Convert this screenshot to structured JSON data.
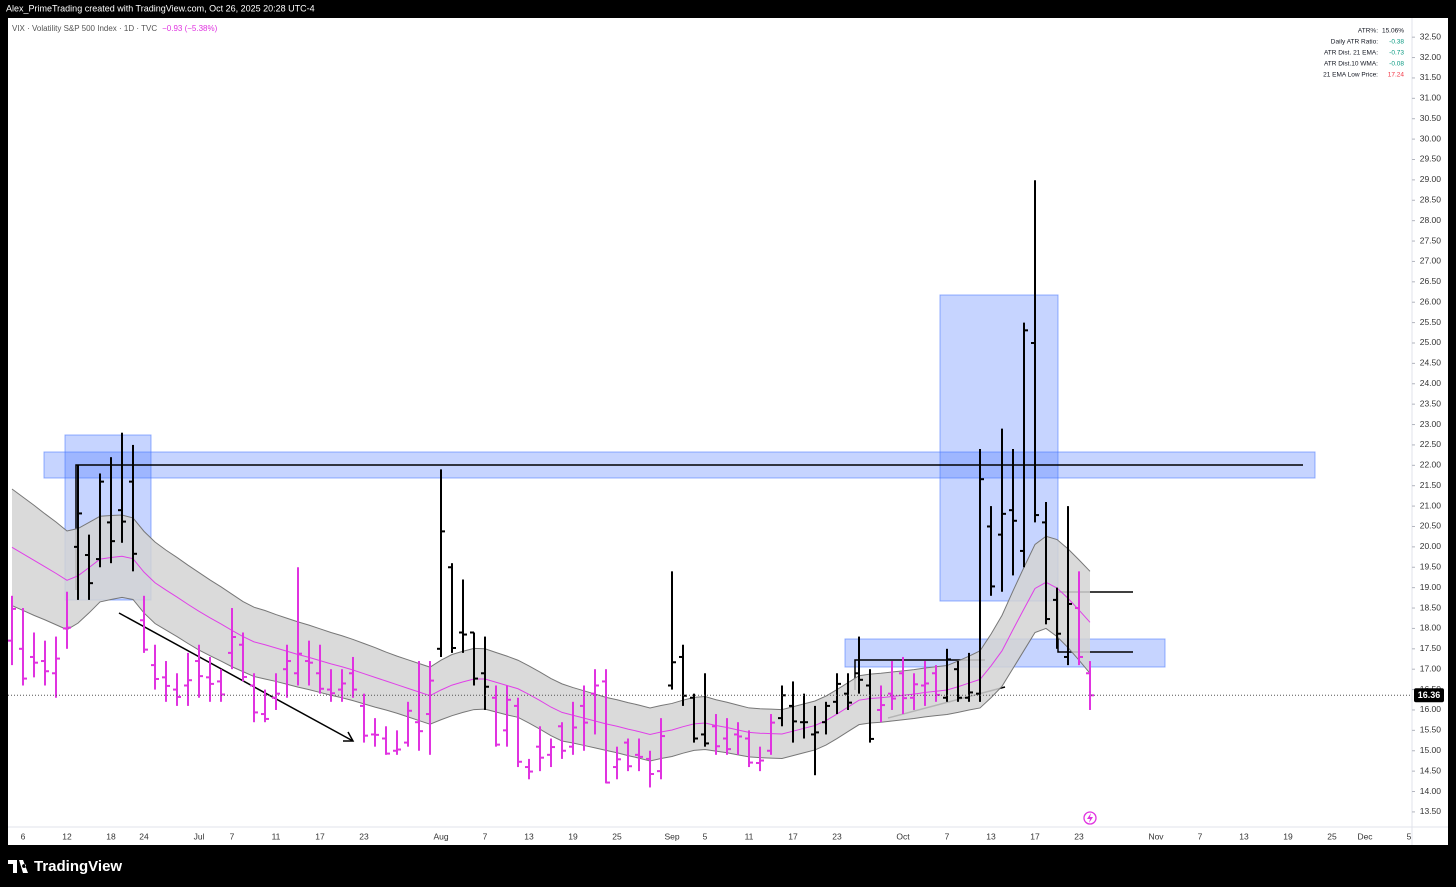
{
  "header": {
    "text": "Alex_PrimeTrading created with TradingView.com, Oct 26, 2025 20:28 UTC-4"
  },
  "footer": {
    "brand": "TradingView"
  },
  "chart_data": {
    "type": "ohlc",
    "legend_title": "VIX · Volatility S&P 500 Index · 1D · TVC",
    "legend_change": "−0.93 (−5.38%)",
    "legend_change_color": "#e033e0",
    "stats": [
      {
        "label": "ATR%:",
        "value": "15.06%",
        "color": "#131722"
      },
      {
        "label": "Daily ATR Ratio:",
        "value": "-0.38",
        "color": "#089981"
      },
      {
        "label": "ATR Dist. 21 EMA:",
        "value": "-0.73",
        "color": "#089981"
      },
      {
        "label": "ATR Dist.10 WMA:",
        "value": "-0.08",
        "color": "#089981"
      },
      {
        "label": "21 EMA Low Price:",
        "value": "17.24",
        "color": "#f23645"
      }
    ],
    "categories": [
      null,
      "6",
      null,
      null,
      null,
      "12",
      null,
      null,
      null,
      "18",
      null,
      null,
      "24",
      null,
      null,
      null,
      null,
      "Jul",
      null,
      null,
      "7",
      null,
      null,
      null,
      "11",
      null,
      null,
      null,
      "17",
      null,
      null,
      null,
      "23",
      null,
      null,
      null,
      null,
      null,
      null,
      "Aug",
      null,
      null,
      null,
      "7",
      null,
      null,
      null,
      "13",
      null,
      null,
      null,
      "19",
      null,
      null,
      null,
      "25",
      null,
      null,
      null,
      null,
      "Sep",
      null,
      null,
      "5",
      null,
      null,
      null,
      "11",
      null,
      null,
      null,
      "17",
      null,
      null,
      null,
      "23",
      null,
      null,
      null,
      null,
      null,
      "Oct",
      null,
      null,
      null,
      "7",
      null,
      null,
      null,
      "13",
      null,
      null,
      null,
      "17",
      null,
      null,
      null,
      "23",
      null,
      null,
      null,
      null,
      null,
      null,
      "Nov",
      null,
      null,
      null,
      "7",
      null,
      null,
      null,
      "13",
      null,
      null,
      null,
      "19",
      null,
      null,
      null,
      "25",
      null,
      null,
      "Dec",
      null,
      null,
      null,
      "5"
    ],
    "open": [
      17.7,
      17.5,
      17.3,
      17.2,
      16.9,
      18.0,
      20.0,
      19.8,
      19.7,
      20.6,
      20.9,
      21.6,
      18.2,
      17.1,
      16.8,
      16.5,
      16.6,
      17.2,
      16.8,
      16.7,
      17.4,
      17.6,
      16.6,
      15.9,
      16.3,
      17.0,
      16.9,
      17.2,
      16.9,
      16.5,
      16.5,
      16.9,
      16.1,
      15.4,
      15.3,
      15.0,
      15.2,
      15.7,
      15.9,
      17.5,
      19.5,
      17.9,
      17.9,
      16.9,
      16.3,
      15.5,
      16.1,
      14.6,
      15.1,
      14.9,
      15.6,
      15.1,
      16.1,
      16.4,
      16.7,
      14.6,
      15.2,
      14.9,
      14.8,
      14.5,
      16.6,
      17.3,
      16.3,
      15.4,
      15.6,
      15.3,
      15.4,
      15.3,
      14.7,
      15.0,
      15.8,
      16.1,
      15.7,
      15.4,
      15.7,
      16.2,
      16.4,
      16.9,
      16.6,
      16.0,
      16.4,
      16.9,
      16.3,
      16.6,
      16.9,
      16.3,
      17.0,
      16.3,
      16.4,
      20.5,
      20.3,
      20.9,
      19.9,
      25.0,
      20.6,
      18.7,
      17.3,
      18.5,
      16.9,
      null,
      null,
      null,
      null,
      null,
      null,
      null,
      null,
      null,
      null,
      null,
      null,
      null,
      null,
      null,
      null,
      null,
      null,
      null,
      null,
      null,
      null,
      null,
      null,
      null,
      null,
      null,
      null,
      null
    ],
    "high": [
      18.8,
      18.5,
      17.9,
      17.7,
      17.8,
      18.9,
      22.0,
      20.3,
      21.8,
      22.2,
      22.8,
      22.5,
      18.8,
      17.6,
      17.2,
      16.9,
      17.4,
      17.6,
      17.3,
      17.0,
      18.5,
      17.9,
      16.9,
      16.5,
      16.9,
      17.6,
      19.5,
      17.7,
      17.6,
      17.0,
      17.0,
      17.3,
      16.4,
      15.8,
      15.6,
      15.5,
      16.2,
      17.2,
      17.2,
      21.9,
      19.6,
      19.2,
      17.9,
      17.8,
      16.6,
      16.6,
      16.3,
      14.8,
      15.6,
      15.3,
      15.7,
      16.2,
      16.6,
      17.0,
      17.0,
      15.1,
      15.3,
      15.3,
      15.0,
      15.8,
      19.4,
      17.6,
      16.4,
      16.9,
      15.9,
      15.8,
      15.7,
      15.5,
      15.1,
      15.9,
      16.6,
      16.7,
      16.4,
      16.1,
      16.2,
      16.9,
      16.9,
      17.8,
      17.0,
      16.6,
      17.2,
      17.3,
      16.9,
      17.2,
      17.1,
      17.5,
      17.2,
      17.4,
      22.4,
      21.0,
      22.9,
      22.4,
      25.5,
      28.99,
      21.1,
      19.0,
      21.0,
      19.4,
      17.2,
      null,
      null,
      null,
      null,
      null,
      null,
      null,
      null,
      null,
      null,
      null,
      null,
      null,
      null,
      null,
      null,
      null,
      null,
      null,
      null,
      null,
      null,
      null,
      null,
      null,
      null,
      null,
      null,
      null
    ],
    "low": [
      17.1,
      16.6,
      16.8,
      16.6,
      16.3,
      17.5,
      18.7,
      18.7,
      19.5,
      19.6,
      20.1,
      19.4,
      17.4,
      16.5,
      16.2,
      16.1,
      16.1,
      16.3,
      16.2,
      16.2,
      17.0,
      16.7,
      15.7,
      15.7,
      16.0,
      16.3,
      16.6,
      16.6,
      16.4,
      16.2,
      16.2,
      16.3,
      15.2,
      15.1,
      14.9,
      14.9,
      15.1,
      15.0,
      14.9,
      17.3,
      17.4,
      17.4,
      16.6,
      16.0,
      15.1,
      15.1,
      14.6,
      14.3,
      14.5,
      14.6,
      14.8,
      14.9,
      15.0,
      15.4,
      14.2,
      14.3,
      14.5,
      14.5,
      14.1,
      14.3,
      16.5,
      16.1,
      15.2,
      15.1,
      14.9,
      14.9,
      14.9,
      14.6,
      14.5,
      14.9,
      15.6,
      15.2,
      15.3,
      14.4,
      15.4,
      15.9,
      16.0,
      16.4,
      15.2,
      15.7,
      16.0,
      15.9,
      16.0,
      16.1,
      16.2,
      16.2,
      16.2,
      16.2,
      16.2,
      18.8,
      18.9,
      19.3,
      19.5,
      20.6,
      18.1,
      17.5,
      17.1,
      17.1,
      16.0,
      null,
      null,
      null,
      null,
      null,
      null,
      null,
      null,
      null,
      null,
      null,
      null,
      null,
      null,
      null,
      null,
      null,
      null,
      null,
      null,
      null,
      null,
      null,
      null,
      null,
      null,
      null,
      null,
      null
    ],
    "close": [
      18.48,
      16.77,
      17.16,
      16.95,
      17.26,
      18.02,
      20.82,
      19.11,
      21.6,
      20.14,
      20.62,
      19.83,
      17.48,
      16.76,
      16.59,
      16.32,
      16.73,
      16.83,
      16.64,
      16.38,
      17.79,
      16.81,
      15.94,
      15.78,
      16.4,
      17.2,
      17.38,
      17.16,
      16.52,
      16.41,
      16.65,
      16.5,
      15.37,
      15.39,
      14.93,
      15.03,
      15.98,
      15.48,
      16.72,
      20.38,
      17.52,
      17.85,
      16.77,
      16.57,
      15.15,
      16.25,
      14.73,
      14.49,
      14.83,
      15.09,
      15.0,
      15.57,
      15.69,
      16.6,
      14.22,
      14.79,
      14.62,
      14.85,
      14.43,
      15.36,
      17.17,
      16.35,
      15.3,
      15.18,
      15.11,
      15.04,
      15.35,
      14.71,
      14.76,
      15.69,
      16.36,
      15.72,
      15.7,
      15.45,
      16.1,
      16.64,
      16.18,
      16.74,
      15.29,
      16.12,
      16.28,
      16.29,
      16.63,
      16.65,
      16.37,
      17.24,
      16.3,
      16.43,
      21.66,
      19.03,
      20.81,
      20.64,
      25.31,
      20.78,
      18.23,
      17.87,
      18.6,
      17.3,
      16.36,
      null,
      null,
      null,
      null,
      null,
      null,
      null,
      null,
      null,
      null,
      null,
      null,
      null,
      null,
      null,
      null,
      null,
      null,
      null,
      null,
      null,
      null,
      null,
      null,
      null,
      null,
      null,
      null,
      null
    ],
    "bar_colors": [
      "#e033e0",
      "#e033e0",
      "#e033e0",
      "#e033e0",
      "#e033e0",
      "#e033e0",
      "#000000",
      "#000000",
      "#000000",
      "#000000",
      "#000000",
      "#000000",
      "#e033e0",
      "#e033e0",
      "#e033e0",
      "#e033e0",
      "#e033e0",
      "#e033e0",
      "#e033e0",
      "#e033e0",
      "#e033e0",
      "#e033e0",
      "#e033e0",
      "#e033e0",
      "#e033e0",
      "#e033e0",
      "#e033e0",
      "#e033e0",
      "#e033e0",
      "#e033e0",
      "#e033e0",
      "#e033e0",
      "#e033e0",
      "#e033e0",
      "#e033e0",
      "#e033e0",
      "#e033e0",
      "#e033e0",
      "#e033e0",
      "#000000",
      "#000000",
      "#000000",
      "#000000",
      "#000000",
      "#e033e0",
      "#e033e0",
      "#e033e0",
      "#e033e0",
      "#e033e0",
      "#e033e0",
      "#e033e0",
      "#e033e0",
      "#e033e0",
      "#e033e0",
      "#e033e0",
      "#e033e0",
      "#e033e0",
      "#e033e0",
      "#e033e0",
      "#e033e0",
      "#000000",
      "#000000",
      "#000000",
      "#000000",
      "#e033e0",
      "#e033e0",
      "#e033e0",
      "#e033e0",
      "#e033e0",
      "#e033e0",
      "#000000",
      "#000000",
      "#000000",
      "#000000",
      "#000000",
      "#000000",
      "#000000",
      "#000000",
      "#000000",
      "#e033e0",
      "#e033e0",
      "#e033e0",
      "#e033e0",
      "#e033e0",
      "#e033e0",
      "#000000",
      "#000000",
      "#000000",
      "#000000",
      "#000000",
      "#000000",
      "#000000",
      "#000000",
      "#000000",
      "#000000",
      "#000000",
      "#000000",
      "#e033e0",
      "#e033e0",
      null,
      null,
      null,
      null,
      null,
      null,
      null,
      null,
      null,
      null,
      null,
      null,
      null,
      null,
      null,
      null,
      null,
      null,
      null,
      null,
      null,
      null,
      null,
      null,
      null,
      null,
      null,
      null,
      null
    ],
    "ema": [
      19.99,
      19.83,
      19.67,
      19.51,
      19.35,
      19.18,
      19.29,
      19.49,
      19.7,
      19.74,
      19.77,
      19.71,
      19.38,
      19.12,
      18.94,
      18.77,
      18.59,
      18.42,
      18.26,
      18.11,
      17.95,
      17.8,
      17.67,
      17.6,
      17.52,
      17.44,
      17.36,
      17.29,
      17.21,
      17.13,
      17.06,
      16.98,
      16.89,
      16.8,
      16.71,
      16.62,
      16.53,
      16.44,
      16.35,
      16.49,
      16.61,
      16.69,
      16.76,
      16.76,
      16.68,
      16.6,
      16.52,
      16.38,
      16.23,
      16.07,
      15.94,
      15.87,
      15.8,
      15.73,
      15.66,
      15.6,
      15.53,
      15.47,
      15.4,
      15.46,
      15.51,
      15.59,
      15.66,
      15.68,
      15.62,
      15.57,
      15.51,
      15.45,
      15.43,
      15.42,
      15.41,
      15.48,
      15.55,
      15.62,
      15.74,
      15.9,
      16.07,
      16.24,
      16.28,
      16.3,
      16.33,
      16.36,
      16.39,
      16.43,
      16.46,
      16.49,
      16.57,
      16.66,
      16.75,
      17.08,
      17.45,
      17.97,
      18.48,
      18.98,
      19.13,
      18.99,
      18.74,
      18.45,
      18.15,
      null,
      null,
      null,
      null,
      null,
      null,
      null,
      null,
      null,
      null,
      null,
      null,
      null,
      null,
      null,
      null,
      null,
      null,
      null,
      null,
      null,
      null,
      null,
      null,
      null,
      null,
      null,
      null,
      null
    ],
    "upper": [
      21.42,
      21.22,
      21.02,
      20.81,
      20.61,
      20.39,
      20.45,
      20.6,
      20.75,
      20.77,
      20.78,
      20.71,
      20.38,
      20.12,
      19.92,
      19.74,
      19.55,
      19.37,
      19.19,
      19.02,
      18.84,
      18.66,
      18.52,
      18.44,
      18.34,
      18.25,
      18.16,
      18.08,
      17.99,
      17.9,
      17.82,
      17.73,
      17.63,
      17.53,
      17.42,
      17.32,
      17.23,
      17.14,
      17.05,
      17.22,
      17.36,
      17.44,
      17.51,
      17.5,
      17.41,
      17.32,
      17.22,
      17.08,
      16.93,
      16.77,
      16.64,
      16.55,
      16.47,
      16.39,
      16.31,
      16.25,
      16.18,
      16.12,
      16.05,
      16.11,
      16.16,
      16.24,
      16.31,
      16.33,
      16.25,
      16.19,
      16.12,
      16.05,
      16.03,
      16.02,
      16.01,
      16.08,
      16.15,
      16.22,
      16.34,
      16.5,
      16.67,
      16.84,
      16.88,
      16.9,
      16.93,
      16.96,
      16.99,
      17.03,
      17.06,
      17.09,
      17.2,
      17.32,
      17.45,
      17.86,
      18.32,
      18.92,
      19.5,
      20.06,
      20.26,
      20.18,
      19.95,
      19.68,
      19.4,
      null,
      null,
      null,
      null,
      null,
      null,
      null,
      null,
      null,
      null,
      null,
      null,
      null,
      null,
      null,
      null,
      null,
      null,
      null,
      null,
      null,
      null,
      null,
      null,
      null,
      null,
      null,
      null,
      null
    ],
    "lower": [
      18.56,
      18.44,
      18.32,
      18.21,
      18.09,
      17.97,
      18.13,
      18.38,
      18.65,
      18.71,
      18.76,
      18.71,
      18.38,
      18.12,
      17.96,
      17.8,
      17.63,
      17.47,
      17.33,
      17.2,
      17.06,
      16.94,
      16.82,
      16.76,
      16.7,
      16.63,
      16.56,
      16.5,
      16.43,
      16.36,
      16.3,
      16.23,
      16.15,
      16.07,
      16.0,
      15.92,
      15.83,
      15.74,
      15.65,
      15.76,
      15.86,
      15.94,
      16.01,
      16.02,
      15.95,
      15.88,
      15.82,
      15.68,
      15.53,
      15.37,
      15.24,
      15.19,
      15.13,
      15.07,
      15.01,
      14.95,
      14.88,
      14.82,
      14.75,
      14.81,
      14.86,
      14.94,
      15.01,
      15.03,
      14.99,
      14.95,
      14.9,
      14.85,
      14.83,
      14.82,
      14.81,
      14.88,
      14.95,
      15.02,
      15.14,
      15.3,
      15.47,
      15.64,
      15.68,
      15.7,
      15.73,
      15.76,
      15.79,
      15.83,
      15.86,
      15.89,
      15.94,
      16.0,
      16.05,
      16.3,
      16.58,
      17.02,
      17.46,
      17.9,
      18.0,
      17.8,
      17.53,
      17.22,
      16.9,
      null,
      null,
      null,
      null,
      null,
      null,
      null,
      null,
      null,
      null,
      null,
      null,
      null,
      null,
      null,
      null,
      null,
      null,
      null,
      null,
      null,
      null,
      null,
      null,
      null,
      null,
      null,
      null,
      null
    ],
    "ema_color": "#e040e8",
    "band_color": "#d4d4d4",
    "band_line_color": "#777777",
    "last_price": 16.36,
    "ylim": [
      13.13,
      32.97
    ],
    "yticks": [
      {
        "value": 13.5,
        "label": "13.50"
      },
      {
        "value": 14,
        "label": "14.00"
      },
      {
        "value": 14.5,
        "label": "14.50"
      },
      {
        "value": 15,
        "label": "15.00"
      },
      {
        "value": 15.5,
        "label": "15.50"
      },
      {
        "value": 16,
        "label": "16.00"
      },
      {
        "value": 16.5,
        "label": "16.50"
      },
      {
        "value": 17,
        "label": "17.00"
      },
      {
        "value": 17.5,
        "label": "17.50"
      },
      {
        "value": 18,
        "label": "18.00"
      },
      {
        "value": 18.5,
        "label": "18.50"
      },
      {
        "value": 19,
        "label": "19.00"
      },
      {
        "value": 19.5,
        "label": "19.50"
      },
      {
        "value": 20,
        "label": "20.00"
      },
      {
        "value": 20.5,
        "label": "20.50"
      },
      {
        "value": 21,
        "label": "21.00"
      },
      {
        "value": 21.5,
        "label": "21.50"
      },
      {
        "value": 22,
        "label": "22.00"
      },
      {
        "value": 22.5,
        "label": "22.50"
      },
      {
        "value": 23,
        "label": "23.00"
      },
      {
        "value": 23.5,
        "label": "23.50"
      },
      {
        "value": 24,
        "label": "24.00"
      },
      {
        "value": 24.5,
        "label": "24.50"
      },
      {
        "value": 25,
        "label": "25.00"
      },
      {
        "value": 25.5,
        "label": "25.50"
      },
      {
        "value": 26,
        "label": "26.00"
      },
      {
        "value": 26.5,
        "label": "26.50"
      },
      {
        "value": 27,
        "label": "27.00"
      },
      {
        "value": 27.5,
        "label": "27.50"
      },
      {
        "value": 28,
        "label": "28.00"
      },
      {
        "value": 28.5,
        "label": "28.50"
      },
      {
        "value": 29,
        "label": "29.00"
      },
      {
        "value": 29.5,
        "label": "29.50"
      },
      {
        "value": 30,
        "label": "30.00"
      },
      {
        "value": 30.5,
        "label": "30.50"
      },
      {
        "value": 31,
        "label": "31.00"
      },
      {
        "value": 31.5,
        "label": "31.50"
      },
      {
        "value": 32,
        "label": "32.00"
      },
      {
        "value": 32.5,
        "label": "32.50"
      }
    ],
    "grid": false
  }
}
